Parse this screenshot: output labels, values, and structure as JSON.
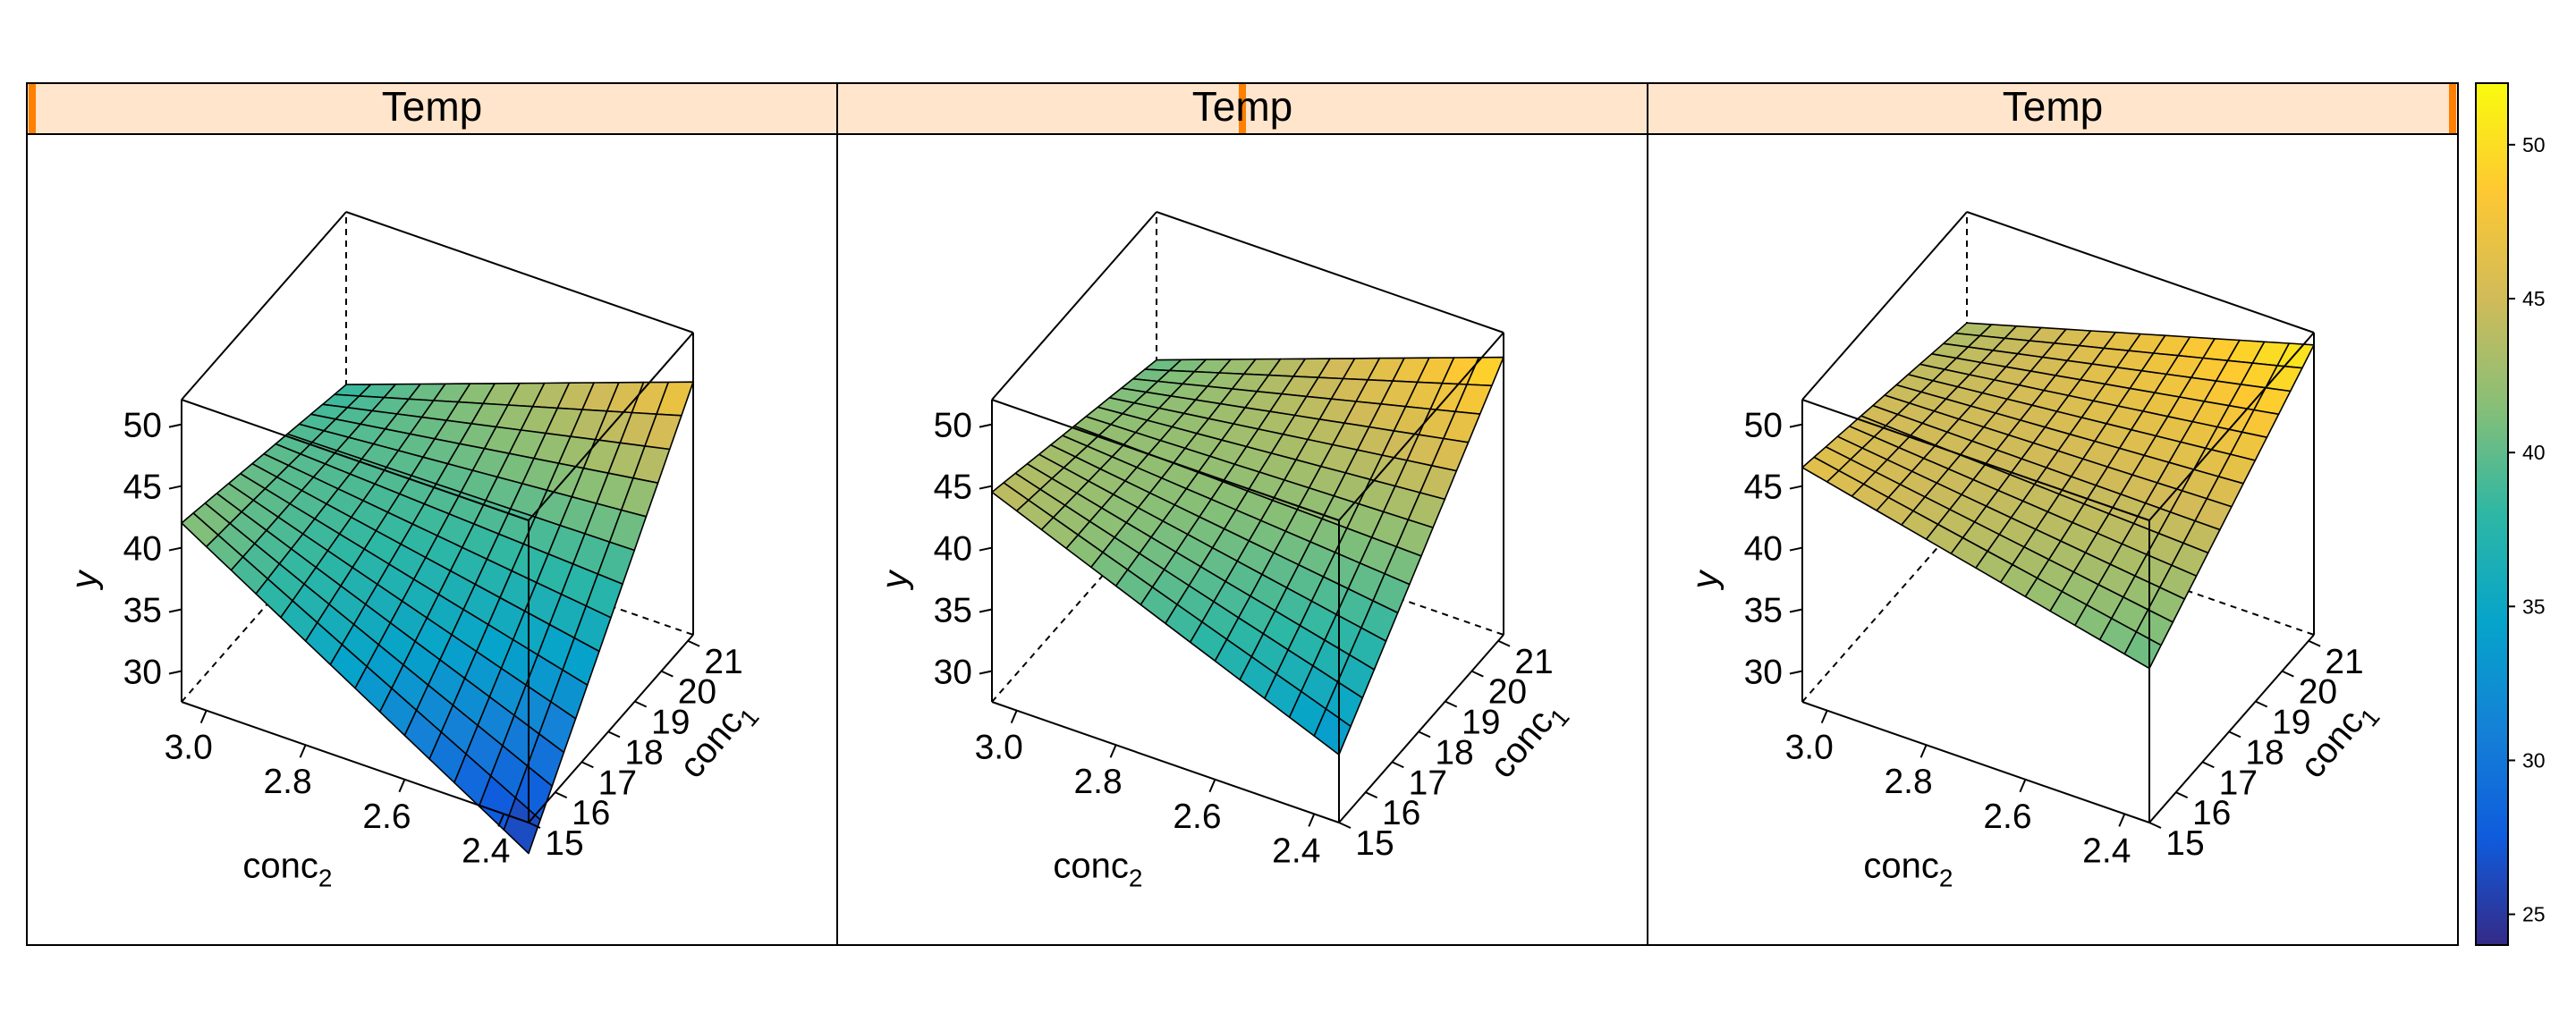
{
  "chart_data": {
    "type": "surface3d",
    "panels": [
      {
        "strip_label": "Temp",
        "strip_level": 0.0,
        "x_axis": {
          "label": "conc",
          "label_subscript": "2",
          "ticks": [
            "3.0",
            "2.8",
            "2.6",
            "2.4"
          ],
          "tick_values": [
            3.0,
            2.8,
            2.6,
            2.4
          ]
        },
        "y_axis": {
          "label": "conc",
          "label_subscript": "1",
          "ticks": [
            "15",
            "16",
            "17",
            "18",
            "19",
            "20",
            "21"
          ],
          "tick_values": [
            15,
            16,
            17,
            18,
            19,
            20,
            21
          ]
        },
        "z_axis": {
          "label": "y",
          "ticks": [
            "30",
            "35",
            "40",
            "45",
            "50"
          ],
          "tick_values": [
            30,
            35,
            40,
            45,
            50
          ]
        },
        "corner_values": {
          "c2_max_c1_min": 42,
          "c2_min_c1_min": 25,
          "c2_min_c1_max": 48,
          "c2_max_c1_max": 38
        }
      },
      {
        "strip_label": "Temp",
        "strip_level": 0.5,
        "x_axis": {
          "label": "conc",
          "label_subscript": "2",
          "ticks": [
            "3.0",
            "2.8",
            "2.6",
            "2.4"
          ],
          "tick_values": [
            3.0,
            2.8,
            2.6,
            2.4
          ]
        },
        "y_axis": {
          "label": "conc",
          "label_subscript": "1",
          "ticks": [
            "15",
            "16",
            "17",
            "18",
            "19",
            "20",
            "21"
          ],
          "tick_values": [
            15,
            16,
            17,
            18,
            19,
            20,
            21
          ]
        },
        "z_axis": {
          "label": "y",
          "ticks": [
            "30",
            "35",
            "40",
            "45",
            "50"
          ],
          "tick_values": [
            30,
            35,
            40,
            45,
            50
          ]
        },
        "corner_values": {
          "c2_max_c1_min": 44.5,
          "c2_min_c1_min": 33,
          "c2_min_c1_max": 50,
          "c2_max_c1_max": 40
        }
      },
      {
        "strip_label": "Temp",
        "strip_level": 1.0,
        "x_axis": {
          "label": "conc",
          "label_subscript": "2",
          "ticks": [
            "3.0",
            "2.8",
            "2.6",
            "2.4"
          ],
          "tick_values": [
            3.0,
            2.8,
            2.6,
            2.4
          ]
        },
        "y_axis": {
          "label": "conc",
          "label_subscript": "1",
          "ticks": [
            "15",
            "16",
            "17",
            "18",
            "19",
            "20",
            "21"
          ],
          "tick_values": [
            15,
            16,
            17,
            18,
            19,
            20,
            21
          ]
        },
        "z_axis": {
          "label": "y",
          "ticks": [
            "30",
            "35",
            "40",
            "45",
            "50"
          ],
          "tick_values": [
            30,
            35,
            40,
            45,
            50
          ]
        },
        "corner_values": {
          "c2_max_c1_min": 46.5,
          "c2_min_c1_min": 40,
          "c2_min_c1_max": 51,
          "c2_max_c1_max": 43
        }
      }
    ],
    "colorkey": {
      "range": [
        24,
        52
      ],
      "ticks": [
        "25",
        "30",
        "35",
        "40",
        "45",
        "50"
      ],
      "tick_values": [
        25,
        30,
        35,
        40,
        45,
        50
      ],
      "palette": "viridis-parula",
      "colors": [
        "#352a87",
        "#0f5cdd",
        "#1481d6",
        "#06a4ca",
        "#2eb7a4",
        "#87bf77",
        "#d1bb59",
        "#fec832",
        "#f9fb0e"
      ]
    },
    "grid": false,
    "legend_position": "right",
    "strip_color": "#ffe5cc",
    "strip_indicator_color": "#ff7f00",
    "mesh_color": "#000000"
  }
}
